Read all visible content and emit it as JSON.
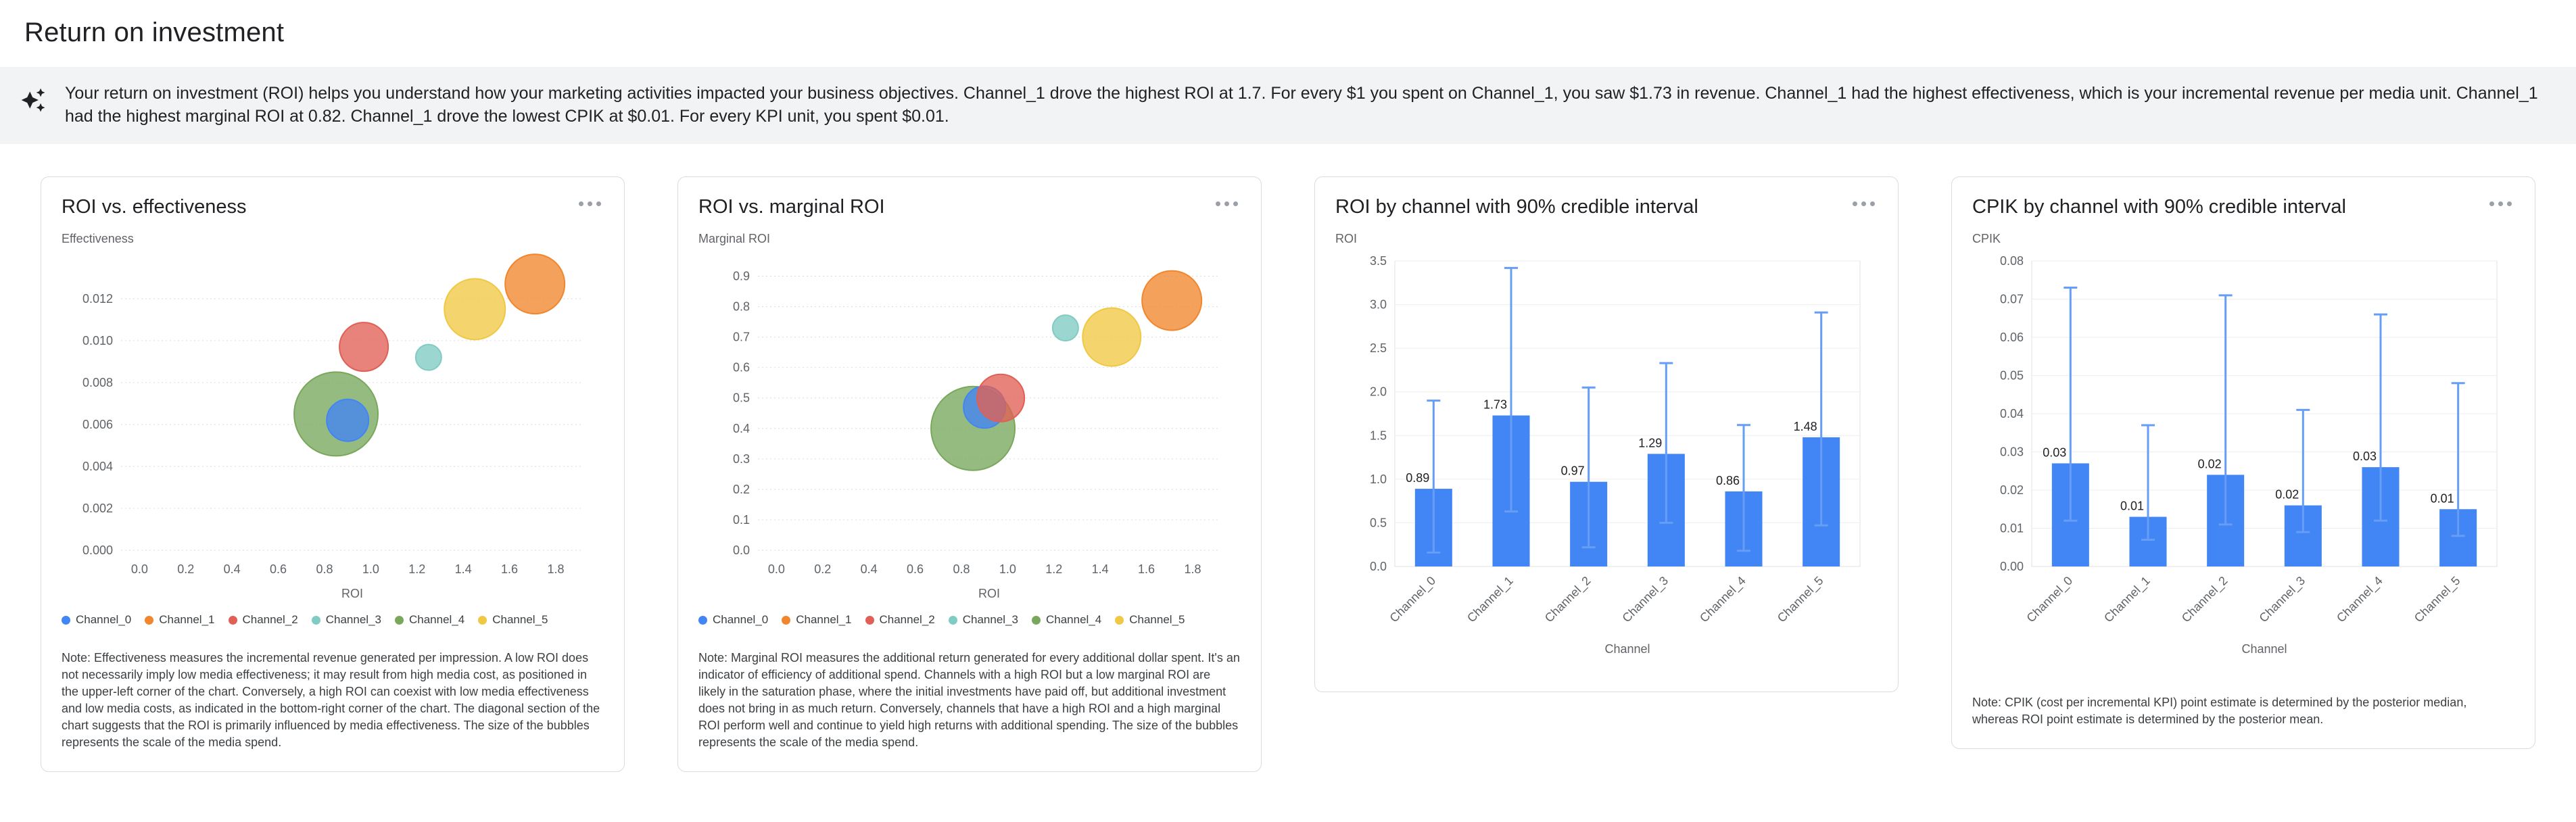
{
  "page": {
    "title": "Return on investment"
  },
  "insight": {
    "text": "Your return on investment (ROI) helps you understand how your marketing activities impacted your business objectives. Channel_1 drove the highest ROI at 1.7. For every $1 you spent on Channel_1, you saw $1.73 in revenue. Channel_1 had the highest effectiveness, which is your incremental revenue per media unit. Channel_1 had the highest marginal ROI at 0.82. Channel_1 drove the lowest CPIK at $0.01. For every KPI unit, you spent $0.01."
  },
  "icons": {
    "banner_icon": "insights-sparkle",
    "card_menu_icon": "more-options-horizontal-dots"
  },
  "channels": [
    {
      "name": "Channel_0",
      "color": "#4285F4"
    },
    {
      "name": "Channel_1",
      "color": "#F0862D"
    },
    {
      "name": "Channel_2",
      "color": "#E06055"
    },
    {
      "name": "Channel_3",
      "color": "#80CBC4"
    },
    {
      "name": "Channel_4",
      "color": "#79A85C"
    },
    {
      "name": "Channel_5",
      "color": "#EFC844"
    }
  ],
  "chart_data": [
    {
      "id": "roi_vs_effectiveness",
      "type": "scatter",
      "title": "ROI vs. effectiveness",
      "ylabel": "Effectiveness",
      "xlabel": "ROI",
      "xlim": [
        -0.08,
        1.92
      ],
      "ylim": [
        0,
        0.0138
      ],
      "xticks": [
        {
          "v": 0,
          "t": "0.0"
        },
        {
          "v": 0.2,
          "t": "0.2"
        },
        {
          "v": 0.4,
          "t": "0.4"
        },
        {
          "v": 0.6,
          "t": "0.6"
        },
        {
          "v": 0.8,
          "t": "0.8"
        },
        {
          "v": 1.0,
          "t": "1.0"
        },
        {
          "v": 1.2,
          "t": "1.2"
        },
        {
          "v": 1.4,
          "t": "1.4"
        },
        {
          "v": 1.6,
          "t": "1.6"
        },
        {
          "v": 1.8,
          "t": "1.8"
        }
      ],
      "yticks": [
        {
          "v": 0,
          "t": "0.000"
        },
        {
          "v": 0.002,
          "t": "0.002"
        },
        {
          "v": 0.004,
          "t": "0.004"
        },
        {
          "v": 0.006,
          "t": "0.006"
        },
        {
          "v": 0.008,
          "t": "0.008"
        },
        {
          "v": 0.01,
          "t": "0.010"
        },
        {
          "v": 0.012,
          "t": "0.012"
        }
      ],
      "points": [
        {
          "channel": "Channel_4",
          "x": 0.85,
          "y": 0.0065,
          "r": 62
        },
        {
          "channel": "Channel_0",
          "x": 0.9,
          "y": 0.0062,
          "r": 31
        },
        {
          "channel": "Channel_2",
          "x": 0.97,
          "y": 0.0097,
          "r": 36
        },
        {
          "channel": "Channel_3",
          "x": 1.25,
          "y": 0.0092,
          "r": 19
        },
        {
          "channel": "Channel_5",
          "x": 1.45,
          "y": 0.0115,
          "r": 45
        },
        {
          "channel": "Channel_1",
          "x": 1.71,
          "y": 0.0127,
          "r": 44
        }
      ],
      "legend": true,
      "note": "Note: Effectiveness measures the incremental revenue generated per impression. A low ROI does not necessarily imply low media effectiveness; it may result from high media cost, as positioned in the upper-left corner of the chart. Conversely, a high ROI can coexist with low media effectiveness and low media costs, as indicated in the bottom-right corner of the chart. The diagonal section of the chart suggests that the ROI is primarily influenced by media effectiveness. The size of the bubbles represents the scale of the media spend."
    },
    {
      "id": "roi_vs_marginal_roi",
      "type": "scatter",
      "title": "ROI vs. marginal ROI",
      "ylabel": "Marginal ROI",
      "xlabel": "ROI",
      "xlim": [
        -0.08,
        1.92
      ],
      "ylim": [
        0,
        0.95
      ],
      "xticks": [
        {
          "v": 0,
          "t": "0.0"
        },
        {
          "v": 0.2,
          "t": "0.2"
        },
        {
          "v": 0.4,
          "t": "0.4"
        },
        {
          "v": 0.6,
          "t": "0.6"
        },
        {
          "v": 0.8,
          "t": "0.8"
        },
        {
          "v": 1.0,
          "t": "1.0"
        },
        {
          "v": 1.2,
          "t": "1.2"
        },
        {
          "v": 1.4,
          "t": "1.4"
        },
        {
          "v": 1.6,
          "t": "1.6"
        },
        {
          "v": 1.8,
          "t": "1.8"
        }
      ],
      "yticks": [
        {
          "v": 0,
          "t": "0.0"
        },
        {
          "v": 0.1,
          "t": "0.1"
        },
        {
          "v": 0.2,
          "t": "0.2"
        },
        {
          "v": 0.3,
          "t": "0.3"
        },
        {
          "v": 0.4,
          "t": "0.4"
        },
        {
          "v": 0.5,
          "t": "0.5"
        },
        {
          "v": 0.6,
          "t": "0.6"
        },
        {
          "v": 0.7,
          "t": "0.7"
        },
        {
          "v": 0.8,
          "t": "0.8"
        },
        {
          "v": 0.9,
          "t": "0.9"
        }
      ],
      "points": [
        {
          "channel": "Channel_4",
          "x": 0.85,
          "y": 0.4,
          "r": 62
        },
        {
          "channel": "Channel_0",
          "x": 0.9,
          "y": 0.47,
          "r": 31
        },
        {
          "channel": "Channel_2",
          "x": 0.97,
          "y": 0.5,
          "r": 35
        },
        {
          "channel": "Channel_3",
          "x": 1.25,
          "y": 0.73,
          "r": 19
        },
        {
          "channel": "Channel_5",
          "x": 1.45,
          "y": 0.7,
          "r": 43
        },
        {
          "channel": "Channel_1",
          "x": 1.71,
          "y": 0.82,
          "r": 44
        }
      ],
      "legend": true,
      "note": "Note: Marginal ROI measures the additional return generated for every additional dollar spent. It's an indicator of efficiency of additional spend. Channels with a high ROI but a low marginal ROI are likely in the saturation phase, where the initial investments have paid off, but additional investment does not bring in as much return. Conversely, channels that have a high ROI and a high marginal ROI perform well and continue to yield high returns with additional spending. The size of the bubbles represents the scale of the media spend."
    },
    {
      "id": "roi_by_channel",
      "type": "bar",
      "title": "ROI by channel with 90% credible interval",
      "ylabel": "ROI",
      "xlabel": "Channel",
      "ylim": [
        0,
        3.5
      ],
      "yticks": [
        {
          "v": 0,
          "t": "0.0"
        },
        {
          "v": 0.5,
          "t": "0.5"
        },
        {
          "v": 1.0,
          "t": "1.0"
        },
        {
          "v": 1.5,
          "t": "1.5"
        },
        {
          "v": 2.0,
          "t": "2.0"
        },
        {
          "v": 2.5,
          "t": "2.5"
        },
        {
          "v": 3.0,
          "t": "3.0"
        },
        {
          "v": 3.5,
          "t": "3.5"
        }
      ],
      "categories": [
        "Channel_0",
        "Channel_1",
        "Channel_2",
        "Channel_3",
        "Channel_4",
        "Channel_5"
      ],
      "values": [
        0.89,
        1.73,
        0.97,
        1.29,
        0.86,
        1.48
      ],
      "labels": [
        "0.89",
        "1.73",
        "0.97",
        "1.29",
        "0.86",
        "1.48"
      ],
      "ci_low": [
        0.16,
        0.63,
        0.22,
        0.5,
        0.18,
        0.47
      ],
      "ci_high": [
        1.9,
        3.42,
        2.05,
        2.33,
        1.62,
        2.91
      ],
      "bar_color": "#4285F4",
      "ci_color": "#669DF6",
      "legend": false,
      "note": null
    },
    {
      "id": "cpik_by_channel",
      "type": "bar",
      "title": "CPIK by channel with 90% credible interval",
      "ylabel": "CPIK",
      "xlabel": "Channel",
      "ylim": [
        0,
        0.08
      ],
      "yticks": [
        {
          "v": 0,
          "t": "0.00"
        },
        {
          "v": 0.01,
          "t": "0.01"
        },
        {
          "v": 0.02,
          "t": "0.02"
        },
        {
          "v": 0.03,
          "t": "0.03"
        },
        {
          "v": 0.04,
          "t": "0.04"
        },
        {
          "v": 0.05,
          "t": "0.05"
        },
        {
          "v": 0.06,
          "t": "0.06"
        },
        {
          "v": 0.07,
          "t": "0.07"
        },
        {
          "v": 0.08,
          "t": "0.08"
        }
      ],
      "categories": [
        "Channel_0",
        "Channel_1",
        "Channel_2",
        "Channel_3",
        "Channel_4",
        "Channel_5"
      ],
      "values": [
        0.027,
        0.013,
        0.024,
        0.016,
        0.026,
        0.015
      ],
      "labels": [
        "0.03",
        "0.01",
        "0.02",
        "0.02",
        "0.03",
        "0.01"
      ],
      "ci_low": [
        0.012,
        0.007,
        0.011,
        0.009,
        0.012,
        0.008
      ],
      "ci_high": [
        0.073,
        0.037,
        0.071,
        0.041,
        0.066,
        0.048
      ],
      "bar_color": "#4285F4",
      "ci_color": "#669DF6",
      "legend": false,
      "note": "Note: CPIK (cost per incremental KPI) point estimate is determined by the posterior median, whereas ROI point estimate is determined by the posterior mean."
    }
  ]
}
